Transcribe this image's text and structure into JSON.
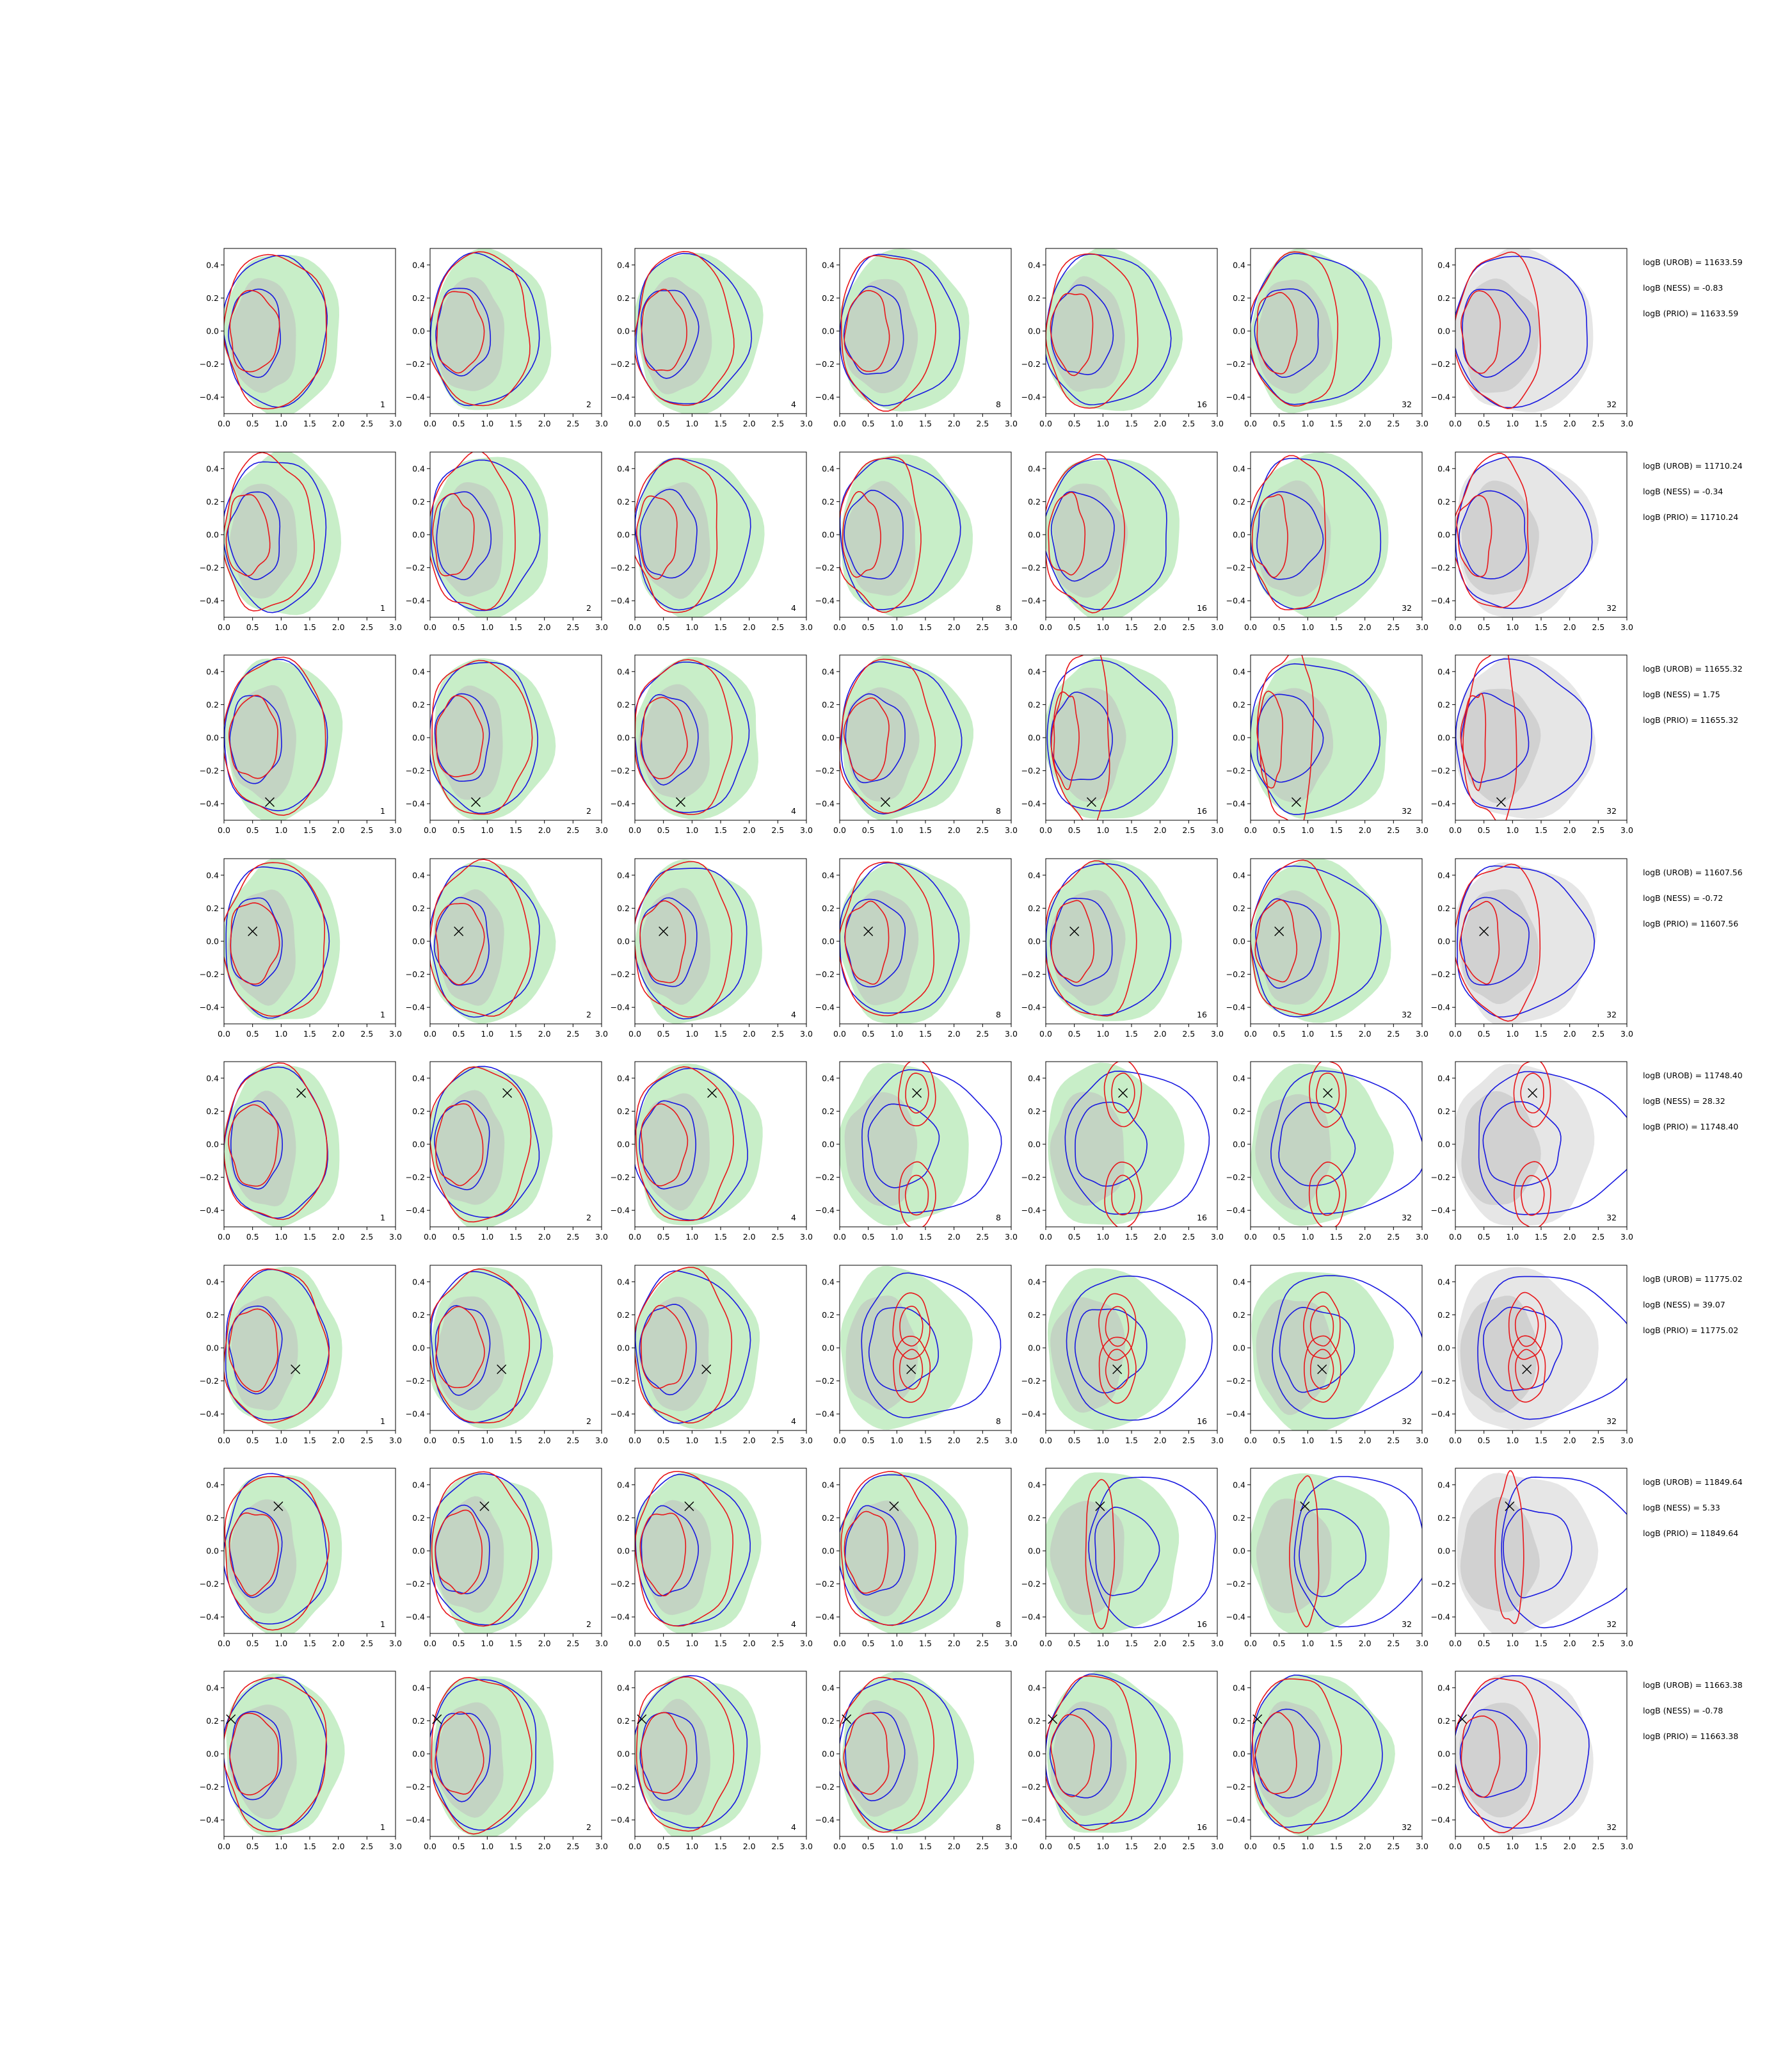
{
  "chart_data": {
    "type": "contour-grid",
    "xlim": [
      0.0,
      3.0
    ],
    "ylim": [
      -0.5,
      0.5
    ],
    "x_ticks": [
      "0.0",
      "0.5",
      "1.0",
      "1.5",
      "2.0",
      "2.5",
      "3.0"
    ],
    "y_ticks": [
      "0.4",
      "0.2",
      "0.0",
      "−0.2",
      "−0.4"
    ],
    "y_tick_values": [
      0.4,
      0.2,
      0.0,
      -0.2,
      -0.4
    ],
    "x_tick_values": [
      0,
      0.5,
      1.0,
      1.5,
      2.0,
      2.5,
      3.0
    ],
    "column_labels": [
      "1",
      "2",
      "4",
      "8",
      "16",
      "32",
      "32"
    ],
    "colors": {
      "red": "#e8161a",
      "blue": "#1818e0",
      "green_fill": "#c8eec8",
      "gray_fill": "#bfbfbf",
      "light_gray_fill": "#e6e6e6"
    },
    "rows": [
      {
        "marker": null,
        "stats": [
          "logB (UROB) = 11633.59",
          "logB (NESS) = -0.83",
          "logB (PRIO) = 11633.59"
        ]
      },
      {
        "marker": null,
        "stats": [
          "logB (UROB) = 11710.24",
          "logB (NESS) = -0.34",
          "logB (PRIO) = 11710.24"
        ]
      },
      {
        "marker": [
          0.8,
          -0.39
        ],
        "stats": [
          "logB (UROB) = 11655.32",
          "logB (NESS) = 1.75",
          "logB (PRIO) = 11655.32"
        ]
      },
      {
        "marker": [
          0.5,
          0.06
        ],
        "stats": [
          "logB (UROB) = 11607.56",
          "logB (NESS) = -0.72",
          "logB (PRIO) = 11607.56"
        ]
      },
      {
        "marker": [
          1.35,
          0.31
        ],
        "stats": [
          "logB (UROB) = 11748.40",
          "logB (NESS) = 28.32",
          "logB (PRIO) = 11748.40"
        ]
      },
      {
        "marker": [
          1.25,
          -0.13
        ],
        "stats": [
          "logB (UROB) = 11775.02",
          "logB (NESS) = 39.07",
          "logB (PRIO) = 11775.02"
        ]
      },
      {
        "marker": [
          0.95,
          0.27
        ],
        "stats": [
          "logB (UROB) = 11849.64",
          "logB (NESS) = 5.33",
          "logB (PRIO) = 11849.64"
        ]
      },
      {
        "marker": [
          0.12,
          0.21
        ],
        "stats": [
          "logB (UROB) = 11663.38",
          "logB (NESS) = -0.78",
          "logB (PRIO) = 11663.38"
        ]
      }
    ]
  }
}
